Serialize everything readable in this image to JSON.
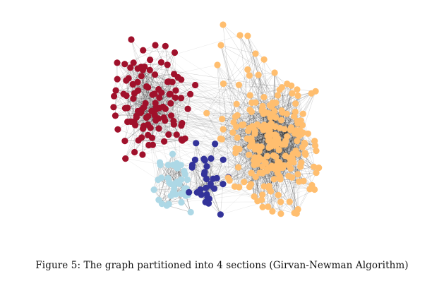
{
  "figure": {
    "caption": "Figure 5: The graph partitioned into 4 sections (Girvan-Newman Algorithm)",
    "communities": [
      {
        "id": "community-1",
        "color": "#a0112b"
      },
      {
        "id": "community-2",
        "color": "#add8e6"
      },
      {
        "id": "community-3",
        "color": "#33339a"
      },
      {
        "id": "community-4",
        "color": "#ffbe6f"
      }
    ],
    "edge_color": "#000000"
  }
}
